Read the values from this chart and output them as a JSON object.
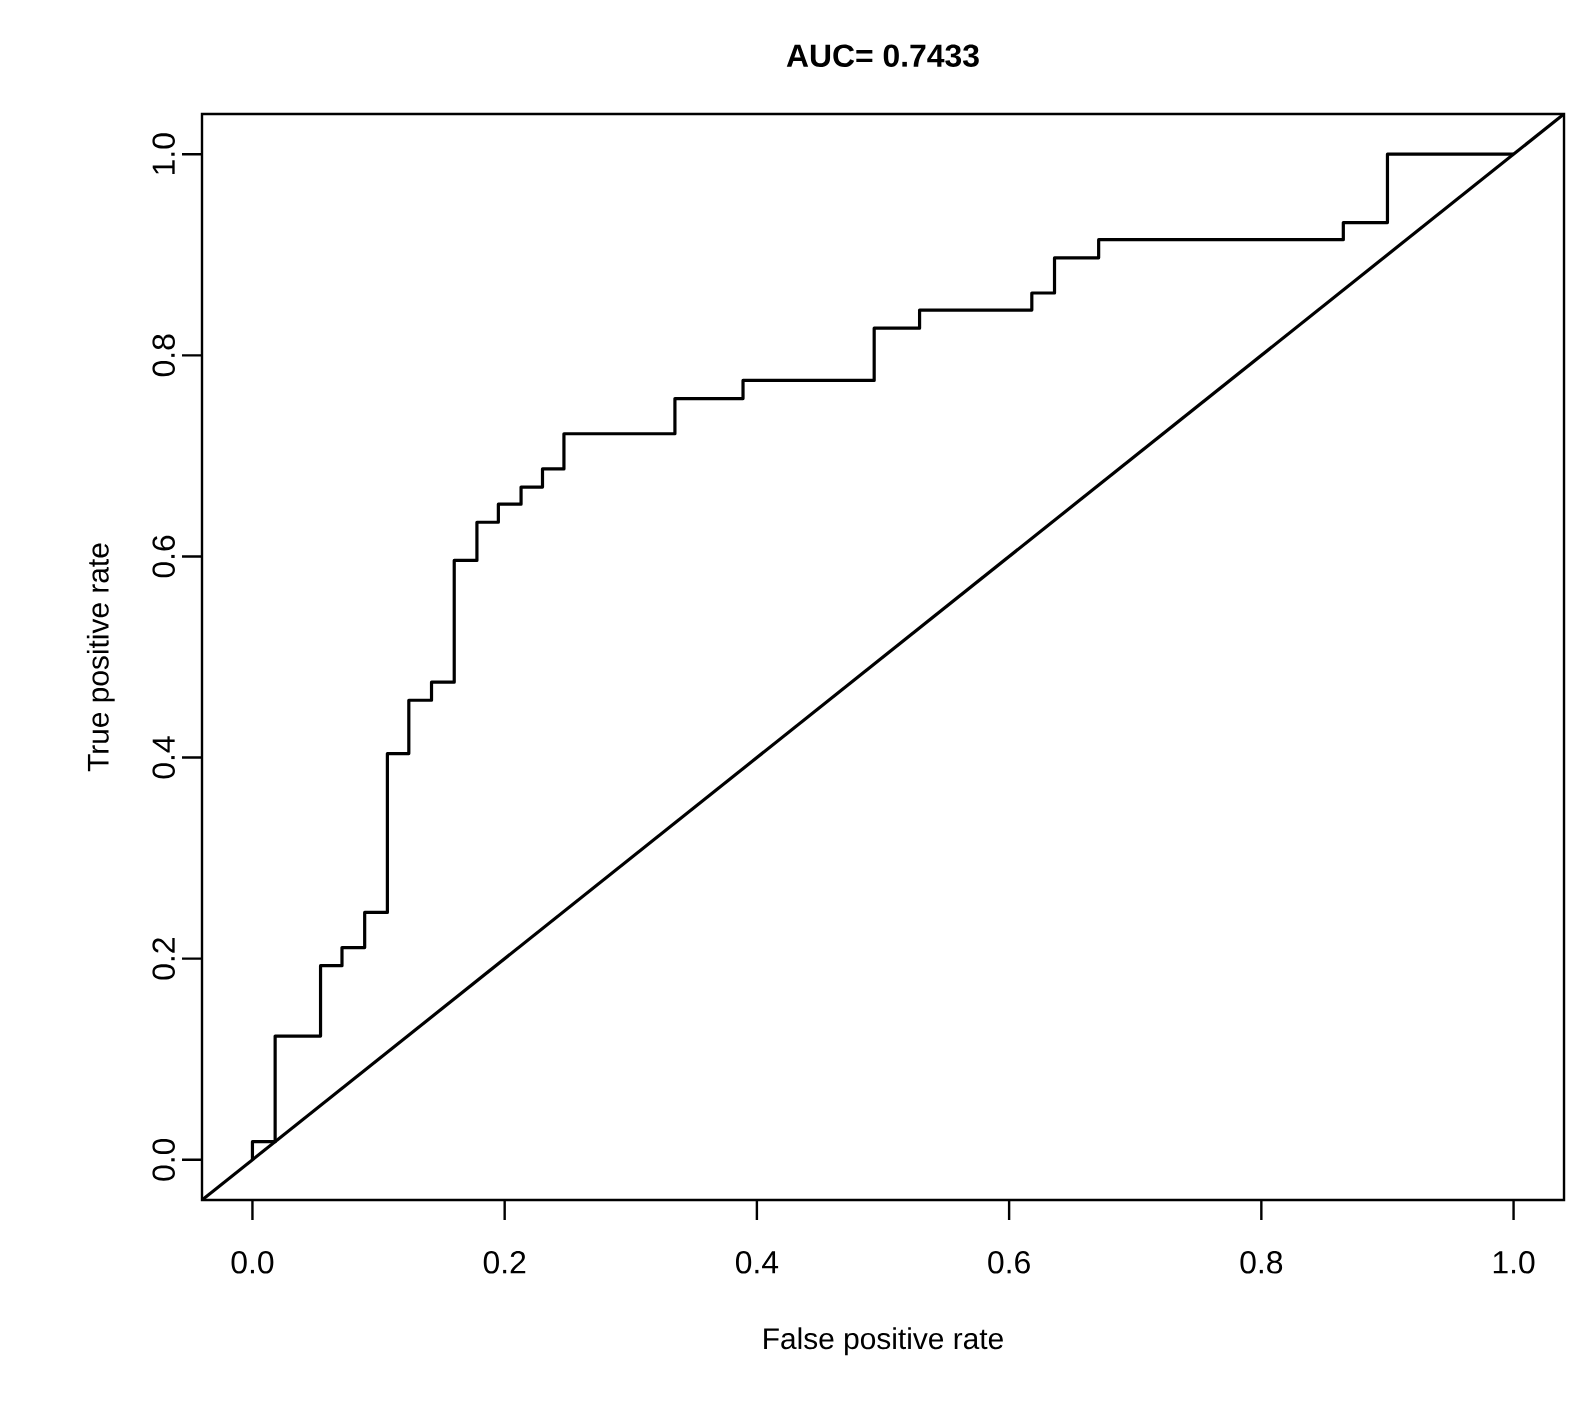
{
  "chart_data": {
    "type": "step",
    "title": "**AUC= 0.7433**",
    "xlabel": "False positive rate",
    "ylabel": "True positive rate",
    "xlim": [
      -0.04,
      1.04
    ],
    "ylim": [
      -0.04,
      1.04
    ],
    "xticks": [
      {
        "value": 0,
        "label": "0.0"
      },
      {
        "value": 0.2,
        "label": "0.2"
      },
      {
        "value": 0.4,
        "label": "0.4"
      },
      {
        "value": 0.6,
        "label": "0.6"
      },
      {
        "value": 0.8,
        "label": "0.8"
      },
      {
        "value": 1,
        "label": "1.0"
      }
    ],
    "yticks": [
      {
        "value": 0,
        "label": "0.0"
      },
      {
        "value": 0.2,
        "label": "0.2"
      },
      {
        "value": 0.4,
        "label": "0.4"
      },
      {
        "value": 0.6,
        "label": "0.6"
      },
      {
        "value": 0.8,
        "label": "0.8"
      },
      {
        "value": 1,
        "label": "1.0"
      }
    ],
    "grid": false,
    "marker": "none",
    "line_style": "solid",
    "series": [
      {
        "color": "#000000",
        "x": [
          0,
          0,
          0.018,
          0.054,
          0.071,
          0.089,
          0.107,
          0.124,
          0.142,
          0.16,
          0.178,
          0.195,
          0.213,
          0.23,
          0.247,
          0.335,
          0.389,
          0.493,
          0.529,
          0.618,
          0.636,
          0.671,
          0.865,
          0.9,
          1.0
        ],
        "values": [
          0,
          0.018,
          0.123,
          0.193,
          0.211,
          0.246,
          0.404,
          0.457,
          0.475,
          0.596,
          0.634,
          0.652,
          0.669,
          0.687,
          0.722,
          0.757,
          0.775,
          0.827,
          0.845,
          0.862,
          0.897,
          0.915,
          0.932,
          1.0,
          1.0
        ]
      },
      {
        "type": "line",
        "color": "#000000",
        "x": [
          -0.04,
          1.04
        ],
        "values": [
          -0.04,
          1.04
        ]
      }
    ]
  }
}
